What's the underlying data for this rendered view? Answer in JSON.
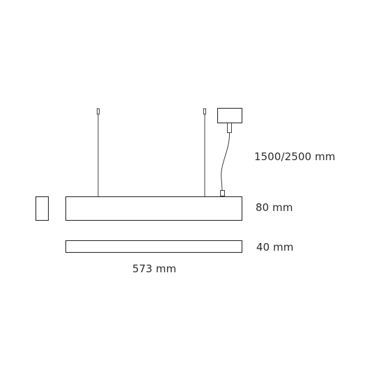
{
  "dimensions": {
    "suspension_length": "1500/2500 mm",
    "height": "80 mm",
    "width": "40 mm",
    "length": "573 mm"
  },
  "colors": {
    "line": "#2b2b2b",
    "background": "#ffffff"
  }
}
